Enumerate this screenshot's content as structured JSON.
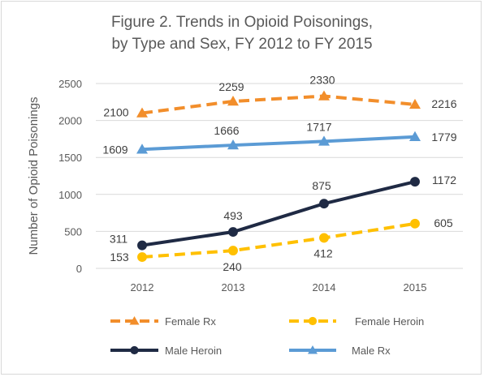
{
  "chart_data": {
    "type": "line",
    "title_line1": "Figure 2. Trends in Opioid Poisonings,",
    "title_line2": "by Type and Sex, FY 2012 to FY 2015",
    "xlabel": "",
    "ylabel": "Number of Opioid Poisonings",
    "categories": [
      "2012",
      "2013",
      "2014",
      "2015"
    ],
    "ylim": [
      0,
      2500
    ],
    "yticks": [
      "0",
      "500",
      "1000",
      "1500",
      "2000",
      "2500"
    ],
    "grid": true,
    "legend_position": "bottom",
    "series": [
      {
        "name": "Female Rx",
        "values": [
          2100,
          2259,
          2330,
          2216
        ],
        "color": "#f28e2b",
        "dash": true,
        "marker": "triangle"
      },
      {
        "name": "Female Heroin",
        "values": [
          153,
          240,
          412,
          605
        ],
        "color": "#ffc000",
        "dash": true,
        "marker": "circle"
      },
      {
        "name": "Male Heroin",
        "values": [
          311,
          493,
          875,
          1172
        ],
        "color": "#1f2a44",
        "dash": false,
        "marker": "circle"
      },
      {
        "name": "Male Rx",
        "values": [
          1609,
          1666,
          1717,
          1779
        ],
        "color": "#5b9bd5",
        "dash": false,
        "marker": "triangle"
      }
    ]
  }
}
